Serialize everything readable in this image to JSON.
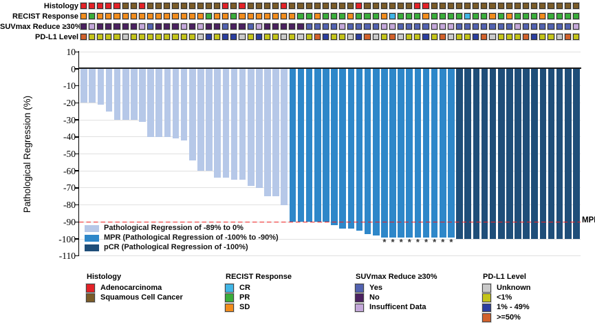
{
  "colors": {
    "adeno": "#e32227",
    "squam": "#7b5c28",
    "cr": "#41b6e6",
    "pr": "#3aad3a",
    "sd": "#f28c1c",
    "suv_yes": "#5262b0",
    "suv_no": "#4b2160",
    "suv_insuf": "#c4a8da",
    "pdl1_unknown": "#c9c9c9",
    "pdl1_lt1": "#c4c41a",
    "pdl1_mid": "#2b3ea0",
    "pdl1_hi": "#d2612b",
    "bar_standard": "#b6c8e8",
    "bar_mpr": "#2e87c9",
    "bar_pcr": "#1f4e79",
    "mpr_line": "#ee2020"
  },
  "chart_data": {
    "type": "bar",
    "subtype": "waterfall",
    "ylabel": "Pathological Regression (%)",
    "ylim": [
      -110,
      10
    ],
    "yticks": [
      10,
      0,
      -10,
      -20,
      -30,
      -40,
      -50,
      -60,
      -70,
      -80,
      -90,
      -100,
      -110
    ],
    "grid": "horizontal",
    "n_samples": 60,
    "mpr_line": {
      "y": -90,
      "label": "MPR",
      "style": "red-dashed"
    },
    "bar_values": [
      -20,
      -20,
      -21,
      -25,
      -30,
      -30,
      -30,
      -31,
      -40,
      -40,
      -40,
      -41,
      -42,
      -54,
      -60,
      -60,
      -64,
      -64,
      -65,
      -65,
      -69,
      -70,
      -75,
      -75,
      -80,
      -90,
      -90,
      -90,
      -90,
      -90,
      -92,
      -94,
      -94,
      -95,
      -97,
      -98,
      -99,
      -99,
      -99,
      -99,
      -99,
      -99,
      -99,
      -99,
      -99,
      -100,
      -100,
      -100,
      -100,
      -100,
      -100,
      -100,
      -100,
      -100,
      -100,
      -100,
      -100,
      -100,
      -100,
      -100
    ],
    "bar_class": [
      "standard",
      "standard",
      "standard",
      "standard",
      "standard",
      "standard",
      "standard",
      "standard",
      "standard",
      "standard",
      "standard",
      "standard",
      "standard",
      "standard",
      "standard",
      "standard",
      "standard",
      "standard",
      "standard",
      "standard",
      "standard",
      "standard",
      "standard",
      "standard",
      "standard",
      "mpr",
      "mpr",
      "mpr",
      "mpr",
      "mpr",
      "mpr",
      "mpr",
      "mpr",
      "mpr",
      "mpr",
      "mpr",
      "mpr",
      "mpr",
      "mpr",
      "mpr",
      "mpr",
      "mpr",
      "mpr",
      "mpr",
      "mpr",
      "pcr",
      "pcr",
      "pcr",
      "pcr",
      "pcr",
      "pcr",
      "pcr",
      "pcr",
      "pcr",
      "pcr",
      "pcr",
      "pcr",
      "pcr",
      "pcr",
      "pcr"
    ],
    "class_colors": {
      "standard": "bar_standard",
      "mpr": "bar_mpr",
      "pcr": "bar_pcr"
    },
    "starred_samples": [
      37,
      38,
      39,
      40,
      41,
      42,
      43,
      44,
      45
    ],
    "star_glyph": "*",
    "bar_legend": [
      {
        "label": "Pathological Regression of -89% to 0%",
        "color": "bar_standard"
      },
      {
        "label": "MPR (Pathological Regression of -100% to -90%)",
        "color": "bar_mpr"
      },
      {
        "label": "pCR (Pathological Regression of -100%)",
        "color": "bar_pcr"
      }
    ],
    "tracks": {
      "rows": [
        {
          "label": "Histology",
          "key": "histology",
          "map": {
            "A": "adeno",
            "S": "squam"
          }
        },
        {
          "label": "RECIST Response",
          "key": "recist",
          "map": {
            "CR": "cr",
            "PR": "pr",
            "SD": "sd"
          }
        },
        {
          "label": "SUVmax Reduce ≥30%",
          "key": "suvmax",
          "map": {
            "Y": "suv_yes",
            "N": "suv_no",
            "I": "suv_insuf"
          }
        },
        {
          "label": "PD-L1 Level",
          "key": "pdl1",
          "map": {
            "U": "pdl1_unknown",
            "LT1": "pdl1_lt1",
            "MID": "pdl1_mid",
            "HI": "pdl1_hi"
          }
        }
      ],
      "histology": [
        "A",
        "A",
        "A",
        "A",
        "A",
        "S",
        "S",
        "A",
        "S",
        "S",
        "S",
        "S",
        "S",
        "S",
        "S",
        "S",
        "S",
        "A",
        "S",
        "A",
        "S",
        "S",
        "S",
        "S",
        "A",
        "S",
        "S",
        "S",
        "S",
        "S",
        "S",
        "S",
        "S",
        "A",
        "S",
        "S",
        "S",
        "S",
        "S",
        "S",
        "A",
        "A",
        "S",
        "S",
        "S",
        "S",
        "S",
        "S",
        "S",
        "S",
        "S",
        "S",
        "S",
        "S",
        "S",
        "S",
        "S",
        "S",
        "S",
        "S"
      ],
      "recist": [
        "SD",
        "PR",
        "SD",
        "SD",
        "SD",
        "SD",
        "SD",
        "SD",
        "SD",
        "SD",
        "SD",
        "SD",
        "SD",
        "SD",
        "SD",
        "PR",
        "SD",
        "SD",
        "PR",
        "SD",
        "SD",
        "SD",
        "SD",
        "SD",
        "SD",
        "SD",
        "PR",
        "PR",
        "SD",
        "PR",
        "PR",
        "PR",
        "SD",
        "PR",
        "PR",
        "PR",
        "SD",
        "CR",
        "PR",
        "PR",
        "PR",
        "SD",
        "PR",
        "PR",
        "PR",
        "PR",
        "CR",
        "PR",
        "PR",
        "SD",
        "PR",
        "SD",
        "PR",
        "PR",
        "PR",
        "SD",
        "PR",
        "PR",
        "PR",
        "PR"
      ],
      "suvmax": [
        "N",
        "I",
        "N",
        "N",
        "N",
        "N",
        "N",
        "I",
        "Y",
        "N",
        "N",
        "N",
        "I",
        "N",
        "I",
        "N",
        "N",
        "Y",
        "N",
        "N",
        "Y",
        "I",
        "N",
        "N",
        "N",
        "N",
        "N",
        "Y",
        "Y",
        "Y",
        "Y",
        "I",
        "Y",
        "Y",
        "Y",
        "Y",
        "I",
        "I",
        "Y",
        "Y",
        "Y",
        "Y",
        "I",
        "I",
        "I",
        "Y",
        "Y",
        "Y",
        "Y",
        "Y",
        "Y",
        "Y",
        "I",
        "Y",
        "Y",
        "Y",
        "Y",
        "Y",
        "Y",
        "I"
      ],
      "pdl1": [
        "HI",
        "LT1",
        "LT1",
        "LT1",
        "LT1",
        "U",
        "LT1",
        "LT1",
        "LT1",
        "LT1",
        "LT1",
        "LT1",
        "LT1",
        "LT1",
        "U",
        "MID",
        "LT1",
        "MID",
        "MID",
        "U",
        "LT1",
        "MID",
        "LT1",
        "LT1",
        "U",
        "LT1",
        "U",
        "LT1",
        "HI",
        "MID",
        "LT1",
        "LT1",
        "U",
        "MID",
        "HI",
        "U",
        "LT1",
        "HI",
        "U",
        "LT1",
        "LT1",
        "MID",
        "LT1",
        "HI",
        "U",
        "LT1",
        "LT1",
        "MID",
        "HI",
        "U",
        "LT1",
        "LT1",
        "LT1",
        "HI",
        "MID",
        "LT1",
        "LT1",
        "U",
        "HI",
        "LT1"
      ]
    },
    "legend_groups": [
      {
        "title": "Histology",
        "items": [
          {
            "label": "Adenocarcinoma",
            "color": "adeno"
          },
          {
            "label": "Squamous Cell Cancer",
            "color": "squam"
          }
        ]
      },
      {
        "title": "RECIST Response",
        "items": [
          {
            "label": "CR",
            "color": "cr"
          },
          {
            "label": "PR",
            "color": "pr"
          },
          {
            "label": "SD",
            "color": "sd"
          }
        ]
      },
      {
        "title": "SUVmax Reduce ≥30%",
        "items": [
          {
            "label": "Yes",
            "color": "suv_yes"
          },
          {
            "label": "No",
            "color": "suv_no"
          },
          {
            "label": "Insufficent Data",
            "color": "suv_insuf"
          }
        ]
      },
      {
        "title": "PD-L1 Level",
        "items": [
          {
            "label": "Unknown",
            "color": "pdl1_unknown"
          },
          {
            "label": "<1%",
            "color": "pdl1_lt1"
          },
          {
            "label": "1% - 49%",
            "color": "pdl1_mid"
          },
          {
            "label": ">=50%",
            "color": "pdl1_hi"
          }
        ]
      }
    ]
  }
}
